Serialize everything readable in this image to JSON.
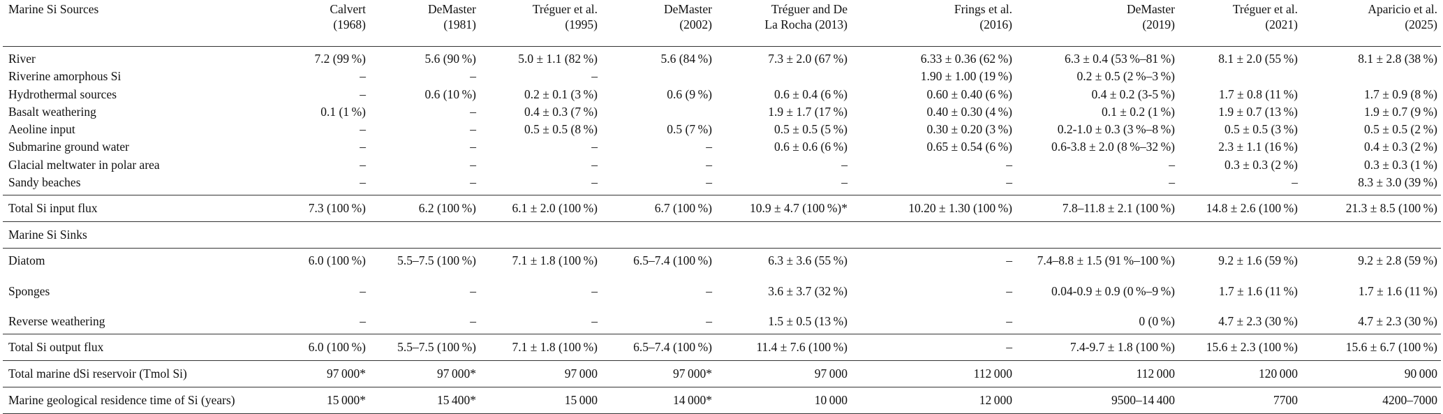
{
  "table": {
    "header": [
      [
        "Marine Si Sources"
      ],
      [
        "Calvert",
        "(1968)"
      ],
      [
        "DeMaster",
        "(1981)"
      ],
      [
        "Tréguer et al.",
        "(1995)"
      ],
      [
        "DeMaster",
        "(2002)"
      ],
      [
        "Tréguer and De",
        "La Rocha (2013)"
      ],
      [
        "Frings et al.",
        "(2016)"
      ],
      [
        "DeMaster",
        "(2019)"
      ],
      [
        "Tréguer et al.",
        "(2021)"
      ],
      [
        "Aparicio et al.",
        "(2025)"
      ]
    ],
    "rows": [
      [
        "River",
        "7.2 (99 %)",
        "5.6 (90 %)",
        "5.0 ± 1.1 (82 %)",
        "5.6 (84 %)",
        "7.3 ± 2.0 (67 %)",
        "6.33 ± 0.36 (62 %)",
        "6.3 ± 0.4 (53 %–81 %)",
        "8.1 ± 2.0 (55 %)",
        "8.1 ± 2.8 (38 %)"
      ],
      [
        "Riverine amorphous Si",
        "–",
        "–",
        "–",
        null,
        null,
        "1.90 ± 1.00 (19 %)",
        "0.2 ± 0.5 (2 %–3 %)",
        null,
        null
      ],
      [
        "Hydrothermal sources",
        "–",
        "0.6 (10 %)",
        "0.2 ± 0.1 (3 %)",
        "0.6 (9 %)",
        "0.6 ± 0.4 (6 %)",
        "0.60 ± 0.40 (6 %)",
        "0.4 ± 0.2 (3-5 %)",
        "1.7 ± 0.8 (11 %)",
        "1.7 ± 0.9 (8 %)"
      ],
      [
        "Basalt weathering",
        "0.1 (1 %)",
        "–",
        "0.4 ± 0.3 (7 %)",
        null,
        "1.9 ± 1.7 (17 %)",
        "0.40 ± 0.30 (4 %)",
        "0.1 ± 0.2 (1 %)",
        "1.9 ± 0.7 (13 %)",
        "1.9 ± 0.7 (9 %)"
      ],
      [
        "Aeoline input",
        "–",
        "–",
        "0.5 ± 0.5 (8 %)",
        "0.5 (7 %)",
        "0.5 ± 0.5 (5 %)",
        "0.30 ± 0.20 (3 %)",
        "0.2-1.0 ± 0.3 (3 %–8 %)",
        "0.5 ± 0.5 (3 %)",
        "0.5 ± 0.5 (2 %)"
      ],
      [
        "Submarine ground water",
        "–",
        "–",
        "–",
        "–",
        "0.6 ± 0.6 (6 %)",
        "0.65 ± 0.54 (6 %)",
        "0.6-3.8 ± 2.0 (8 %–32 %)",
        "2.3 ± 1.1 (16 %)",
        "0.4 ± 0.3 (2 %)"
      ],
      [
        "Glacial meltwater in polar area",
        "–",
        "–",
        "–",
        "–",
        "–",
        "–",
        "–",
        "0.3 ± 0.3 (2 %)",
        "0.3 ± 0.3 (1 %)"
      ],
      [
        "Sandy beaches",
        "–",
        "–",
        "–",
        "–",
        "–",
        "–",
        "–",
        "–",
        "8.3 ± 3.0 (39 %)"
      ],
      [
        "Total Si input flux",
        "7.3 (100 %)",
        "6.2 (100 %)",
        "6.1 ± 2.0 (100 %)",
        "6.7 (100 %)",
        "10.9 ± 4.7 (100 %)*",
        "10.20 ± 1.30 (100 %)",
        "7.8–11.8 ± 2.1 (100 %)",
        "14.8 ± 2.6 (100 %)",
        "21.3 ± 8.5 (100 %)"
      ],
      [
        "Marine Si Sinks"
      ],
      [
        "Diatom",
        "6.0 (100 %)",
        "5.5–7.5 (100 %)",
        "7.1 ± 1.8 (100 %)",
        "6.5–7.4 (100 %)",
        "6.3 ± 3.6 (55 %)",
        "–",
        "7.4–8.8 ± 1.5 (91 %–100 %)",
        "9.2 ± 1.6 (59 %)",
        "9.2 ± 2.8 (59 %)"
      ],
      [
        "Sponges",
        "–",
        "–",
        "–",
        "–",
        "3.6 ± 3.7 (32 %)",
        "–",
        "0.04-0.9 ± 0.9 (0 %–9 %)",
        "1.7 ± 1.6 (11 %)",
        "1.7 ± 1.6 (11 %)"
      ],
      [
        "Reverse weathering",
        "–",
        "–",
        "–",
        "–",
        "1.5 ± 0.5 (13 %)",
        "–",
        "0 (0 %)",
        "4.7 ± 2.3 (30 %)",
        "4.7 ± 2.3 (30 %)"
      ],
      [
        "Total Si output flux",
        "6.0 (100 %)",
        "5.5–7.5 (100 %)",
        "7.1 ± 1.8 (100 %)",
        "6.5–7.4 (100 %)",
        "11.4 ± 7.6 (100 %)",
        "–",
        "7.4-9.7 ± 1.8 (100 %)",
        "15.6 ± 2.3 (100 %)",
        "15.6 ± 6.7 (100 %)"
      ],
      [
        "Total marine dSi reservoir (Tmol Si)",
        "97 000*",
        "97 000*",
        "97 000",
        "97 000*",
        "97 000",
        "112 000",
        "112 000",
        "120 000",
        "90 000"
      ],
      [
        "Marine geological residence time of Si (years)",
        "15 000*",
        "15 400*",
        "15 000",
        "14 000*",
        "10 000",
        "12 000",
        "9500–14 400",
        "7700",
        "4200–7000"
      ]
    ]
  }
}
